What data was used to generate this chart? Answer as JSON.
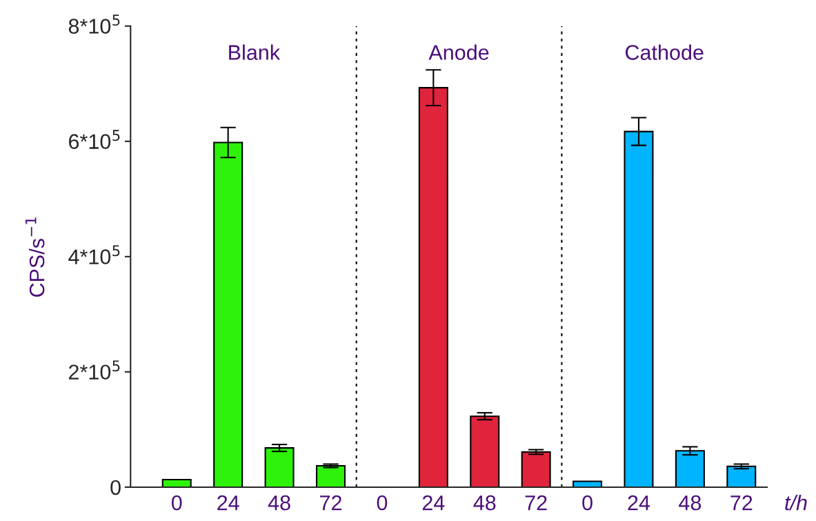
{
  "chart_data": {
    "type": "bar",
    "ylabel": "CPS/s$^{−1}$",
    "xlabel": "t/h",
    "categories": [
      "0",
      "24",
      "48",
      "72",
      "0",
      "24",
      "48",
      "72",
      "0",
      "24",
      "48",
      "72"
    ],
    "values": [
      13000,
      598000,
      68000,
      37000,
      0,
      693000,
      123000,
      61000,
      10000,
      617000,
      63000,
      36000
    ],
    "errors": [
      null,
      26000,
      6000,
      3000,
      null,
      31000,
      6000,
      4000,
      null,
      24000,
      7000,
      4000
    ],
    "colors": [
      "#2ef20a",
      "#2ef20a",
      "#2ef20a",
      "#2ef20a",
      "#e0243c",
      "#e0243c",
      "#e0243c",
      "#e0243c",
      "#00b4ff",
      "#00b4ff",
      "#00b4ff",
      "#00b4ff"
    ],
    "ylim": [
      0,
      800000
    ],
    "yticks": [
      0,
      {
        "value": 200000,
        "label": "2*10$^{5}$"
      },
      {
        "value": 400000,
        "label": "4*10$^{5}$"
      },
      {
        "value": 600000,
        "label": "6*10$^{5}$"
      },
      {
        "value": 800000,
        "label": "8*10$^{5}$"
      }
    ],
    "annotations": [
      "Blank",
      "Anode",
      "Cathode"
    ],
    "grid": false,
    "legend": false
  }
}
